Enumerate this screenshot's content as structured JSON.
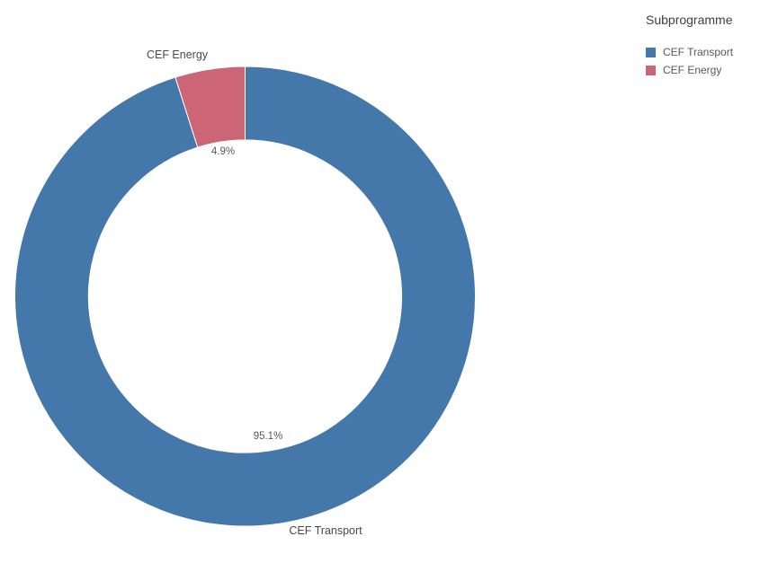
{
  "chart_data": {
    "type": "pie",
    "subtype": "donut",
    "legend_title": "Subprogramme",
    "categories": [
      "CEF Transport",
      "CEF Energy"
    ],
    "values": [
      95.1,
      4.9
    ],
    "value_unit": "percent",
    "slice_labels": [
      "95.1%",
      "4.9%"
    ],
    "colors": [
      "#4477aa",
      "#cc6677"
    ],
    "background": "#ffffff",
    "inner_radius_ratio": 0.68,
    "start_angle_deg": 0,
    "direction": "clockwise",
    "legend_position": "top-right",
    "grid": false
  }
}
